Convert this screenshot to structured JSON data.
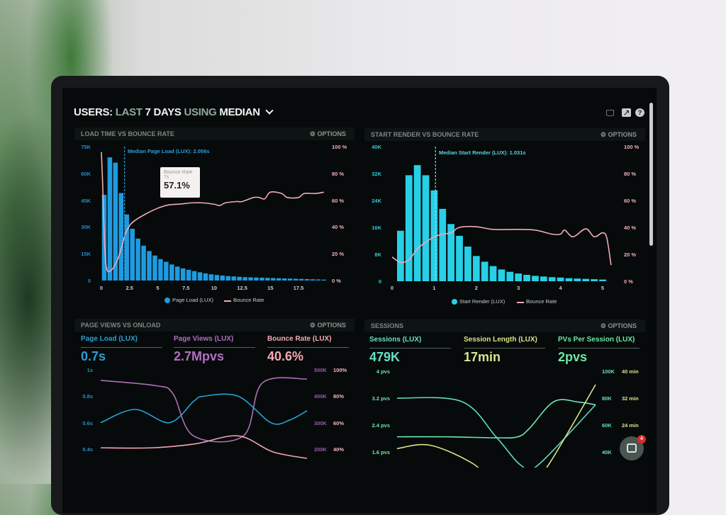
{
  "header": {
    "users": "USERS:",
    "last": "LAST",
    "days": "7 DAYS",
    "using": "USING",
    "median": "MEDIAN",
    "icons": [
      "monitor-icon",
      "share-icon",
      "help-icon"
    ]
  },
  "panels": [
    {
      "title": "LOAD TIME VS BOUNCE RATE",
      "options": "OPTIONS"
    },
    {
      "title": "START RENDER VS BOUNCE RATE",
      "options": "OPTIONS"
    },
    {
      "title": "PAGE VIEWS VS ONLOAD",
      "options": "OPTIONS",
      "kpis": [
        {
          "label": "Page Load (LUX)",
          "value": "0.7s",
          "color": "#2a9fd6"
        },
        {
          "label": "Page Views (LUX)",
          "value": "2.7Mpvs",
          "color": "#b26fc0"
        },
        {
          "label": "Bounce Rate (LUX)",
          "value": "40.6%",
          "color": "#f7a9b8"
        }
      ]
    },
    {
      "title": "SESSIONS",
      "options": "OPTIONS",
      "kpis": [
        {
          "label": "Sessions (LUX)",
          "value": "479K",
          "color": "#66e0c4"
        },
        {
          "label": "Session Length (LUX)",
          "value": "17min",
          "color": "#d9e48c"
        },
        {
          "label": "PVs Per Session (LUX)",
          "value": "2pvs",
          "color": "#6ee8a4"
        }
      ]
    }
  ],
  "chat": {
    "badge": "4"
  },
  "chart_data": [
    {
      "type": "bar+line",
      "title": "LOAD TIME VS BOUNCE RATE",
      "annotation": "Median Page Load (LUX): 2.056s",
      "median": 2.056,
      "tooltip": {
        "label": "Bounce Rate",
        "x": "7s",
        "value": "57.1%"
      },
      "xlim": [
        0,
        20
      ],
      "x_axis": {
        "ticks": [
          0,
          2.5,
          5,
          7.5,
          10,
          12.5,
          15,
          17.5
        ],
        "labels": [
          "0",
          "2.5",
          "5",
          "7.5",
          "10",
          "12.5",
          "15",
          "17.5"
        ]
      },
      "axes": {
        "left": {
          "lim": [
            0,
            75000
          ],
          "ticks": [
            0,
            15000,
            30000,
            45000,
            60000,
            75000
          ],
          "labels": [
            "0",
            "15K",
            "30K",
            "45K",
            "60K",
            "75K"
          ],
          "color": "#1e8fd0"
        },
        "right": {
          "lim": [
            0,
            100
          ],
          "ticks": [
            0,
            20,
            40,
            60,
            80,
            100
          ],
          "labels": [
            "0 %",
            "20 %",
            "40 %",
            "60 %",
            "80 %",
            "100 %"
          ],
          "color": "#f0b0bc"
        }
      },
      "legend": [
        "Page Load (LUX)",
        "Bounce Rate"
      ],
      "series": [
        {
          "name": "Page Load (LUX)",
          "type": "bar",
          "axis": "left",
          "color": "#1e9be0",
          "bin_width": 0.5,
          "x": [
            0.25,
            0.75,
            1.25,
            1.75,
            2.25,
            2.75,
            3.25,
            3.75,
            4.25,
            4.75,
            5.25,
            5.75,
            6.25,
            6.75,
            7.25,
            7.75,
            8.25,
            8.75,
            9.25,
            9.75,
            10.25,
            10.75,
            11.25,
            11.75,
            12.25,
            12.75,
            13.25,
            13.75,
            14.25,
            14.75,
            15.25,
            15.75,
            16.25,
            16.75,
            17.25,
            17.75,
            18.25,
            18.75,
            19.25,
            19.75
          ],
          "values": [
            48000,
            69000,
            66000,
            49000,
            37000,
            29000,
            23500,
            19500,
            16500,
            14000,
            12000,
            10500,
            9000,
            7800,
            6800,
            6000,
            5300,
            4600,
            4000,
            3500,
            3100,
            2800,
            2500,
            2300,
            2100,
            1900,
            1800,
            1700,
            1600,
            1500,
            1400,
            1300,
            1200,
            1100,
            1000,
            900,
            800,
            700,
            600,
            500
          ]
        },
        {
          "name": "Bounce Rate",
          "type": "line",
          "axis": "right",
          "color": "#f2a9b8",
          "x": [
            0,
            0.1,
            0.3,
            0.5,
            0.9,
            1.3,
            1.7,
            2.1,
            2.5,
            3,
            4,
            5,
            6,
            7,
            8,
            9,
            10,
            10.5,
            11,
            12,
            12.5,
            13.5,
            14,
            14.5,
            15,
            16,
            16.5,
            17.5,
            18,
            19,
            19.75
          ],
          "values": [
            96,
            75,
            25,
            8,
            8,
            13,
            22,
            34,
            41,
            45,
            50,
            54,
            56.5,
            57.1,
            58,
            58,
            57,
            56,
            58,
            59,
            59,
            62,
            62,
            61,
            66,
            65,
            62,
            62,
            65,
            65,
            66
          ]
        }
      ]
    },
    {
      "type": "bar+line",
      "title": "START RENDER VS BOUNCE RATE",
      "annotation": "Median Start Render (LUX): 1.031s",
      "median": 1.031,
      "xlim": [
        0,
        5.3
      ],
      "x_axis": {
        "ticks": [
          0,
          1,
          2,
          3,
          4,
          5
        ],
        "labels": [
          "0",
          "1",
          "2",
          "3",
          "4",
          "5"
        ]
      },
      "axes": {
        "left": {
          "lim": [
            0,
            40000
          ],
          "ticks": [
            0,
            8000,
            16000,
            24000,
            32000,
            40000
          ],
          "labels": [
            "0",
            "8K",
            "16K",
            "24K",
            "32K",
            "40K"
          ],
          "color": "#2ec8d8"
        },
        "right": {
          "lim": [
            0,
            100
          ],
          "ticks": [
            0,
            20,
            40,
            60,
            80,
            100
          ],
          "labels": [
            "0 %",
            "20 %",
            "40 %",
            "60 %",
            "80 %",
            "100 %"
          ],
          "color": "#f0b0bc"
        }
      },
      "legend": [
        "Start Render (LUX)",
        "Bounce Rate"
      ],
      "series": [
        {
          "name": "Start Render (LUX)",
          "type": "bar",
          "axis": "left",
          "color": "#27d0e6",
          "bin_width": 0.2,
          "x": [
            0.2,
            0.4,
            0.6,
            0.8,
            1.0,
            1.2,
            1.4,
            1.6,
            1.8,
            2.0,
            2.2,
            2.4,
            2.6,
            2.8,
            3.0,
            3.2,
            3.4,
            3.6,
            3.8,
            4.0,
            4.2,
            4.4,
            4.6,
            4.8,
            5.0
          ],
          "values": [
            15000,
            31500,
            34500,
            31500,
            27000,
            21500,
            17000,
            13500,
            10300,
            7500,
            5800,
            4500,
            3500,
            2800,
            2300,
            1900,
            1600,
            1400,
            1200,
            1100,
            900,
            800,
            700,
            600,
            500
          ]
        },
        {
          "name": "Bounce Rate",
          "type": "line",
          "axis": "right",
          "color": "#f2a9b8",
          "x": [
            0,
            0.2,
            0.4,
            0.6,
            0.8,
            1.0,
            1.2,
            1.4,
            1.6,
            2,
            2.4,
            3,
            3.4,
            3.8,
            4.0,
            4.1,
            4.3,
            4.6,
            4.8,
            5.0,
            5.1,
            5.2
          ],
          "values": [
            18,
            14,
            16,
            24,
            29,
            33,
            35,
            36,
            40,
            40.5,
            38.5,
            38.5,
            38,
            35,
            35,
            38,
            33,
            39,
            33,
            36,
            32,
            12
          ]
        }
      ]
    },
    {
      "type": "line",
      "title": "PAGE VIEWS VS ONLOAD",
      "xlim": [
        0,
        12
      ],
      "axes": {
        "left": {
          "lim": [
            0.4,
            1
          ],
          "ticks": [
            0.4,
            0.6,
            0.8,
            1
          ],
          "labels": [
            "0.4s",
            "0.6s",
            "0.8s",
            "1s"
          ],
          "color": "#2a8fc4"
        },
        "right": {
          "lim": [
            200000,
            500000
          ],
          "ticks": [
            200000,
            300000,
            400000,
            500000
          ],
          "labels": [
            "200K",
            "300K",
            "400K",
            "500K"
          ],
          "color": "#9a5da8"
        },
        "right2": {
          "lim": [
            40,
            100
          ],
          "ticks": [
            40,
            60,
            80,
            100
          ],
          "labels": [
            "40%",
            "60%",
            "80%",
            "100%"
          ],
          "color": "#f7b7c4"
        }
      },
      "series": [
        {
          "name": "Page Load (LUX)",
          "type": "line",
          "axis": "left",
          "color": "#2a9fd6",
          "x": [
            0,
            2,
            4,
            5.4,
            6,
            8,
            9.9,
            11,
            12
          ],
          "values": [
            0.6,
            0.7,
            0.6,
            0.76,
            0.8,
            0.8,
            0.6,
            0.62,
            0.69
          ]
        },
        {
          "name": "Page Views (LUX)",
          "type": "line",
          "axis": "right",
          "color": "#b070b8",
          "x": [
            0,
            3.2,
            4.2,
            5.4,
            8.3,
            9.4,
            12
          ],
          "values": [
            460000,
            440000,
            410000,
            250000,
            250000,
            450000,
            465000
          ]
        },
        {
          "name": "Bounce Rate (LUX)",
          "type": "line",
          "axis": "right2",
          "color": "#f4a4b4",
          "x": [
            0,
            3,
            5.5,
            8,
            10,
            12
          ],
          "values": [
            41,
            41,
            44,
            50,
            38,
            33
          ]
        }
      ]
    },
    {
      "type": "line",
      "title": "SESSIONS",
      "xlim": [
        0,
        12
      ],
      "axes": {
        "left": {
          "lim": [
            1.6,
            4
          ],
          "ticks": [
            1.6,
            2.4,
            3.2,
            4
          ],
          "labels": [
            "1.6 pvs",
            "2.4 pvs",
            "3.2 pvs",
            "4 pvs"
          ],
          "color": "#6ee8a4"
        },
        "right": {
          "lim": [
            40000,
            100000
          ],
          "ticks": [
            40000,
            60000,
            80000,
            100000
          ],
          "labels": [
            "40K",
            "60K",
            "80K",
            "100K"
          ],
          "color": "#66e0c4"
        },
        "right2": {
          "lim": [
            16,
            40
          ],
          "ticks": [
            24,
            32,
            40
          ],
          "labels": [
            "24 min",
            "32 min",
            "40 min"
          ],
          "color": "#d9e48c"
        }
      },
      "series": [
        {
          "name": "Sessions (LUX)",
          "type": "line",
          "axis": "right",
          "color": "#5fdcc0",
          "x": [
            0,
            3.9,
            6,
            7.5,
            8.5,
            12
          ],
          "values": [
            80000,
            77500,
            51000,
            30000,
            30000,
            75000
          ]
        },
        {
          "name": "PVs Per Session (LUX)",
          "type": "line",
          "axis": "left",
          "color": "#6ee6b4",
          "x": [
            0,
            3,
            6,
            7.3,
            8,
            9.5,
            11,
            12
          ],
          "values": [
            2.05,
            2.05,
            2.02,
            2.05,
            2.3,
            3.1,
            3.08,
            3.0
          ]
        },
        {
          "name": "Session Length (LUX)",
          "type": "line",
          "axis": "right2",
          "color": "#d9e48c",
          "x": [
            0,
            2,
            4.6,
            6,
            8,
            9.2,
            12
          ],
          "values": [
            17,
            18,
            12.5,
            6,
            6,
            12.5,
            36
          ]
        }
      ]
    }
  ]
}
